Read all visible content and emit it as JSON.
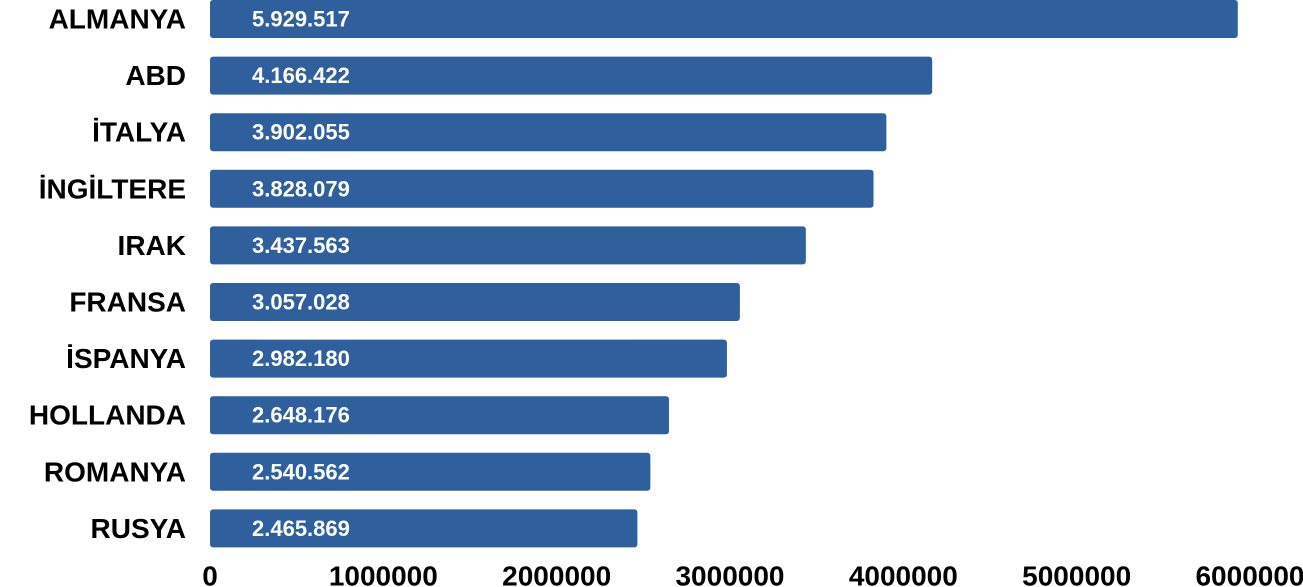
{
  "chart_data": {
    "type": "bar",
    "orientation": "horizontal",
    "categories": [
      "ALMANYA",
      "ABD",
      "İTALYA",
      "İNGİLTERE",
      "IRAK",
      "FRANSA",
      "İSPANYA",
      "HOLLANDA",
      "ROMANYA",
      "RUSYA"
    ],
    "values": [
      5929517,
      4166422,
      3902055,
      3828079,
      3437563,
      3057028,
      2982180,
      2648176,
      2540562,
      2465869
    ],
    "value_labels": [
      "5.929.517",
      "4.166.422",
      "3.902.055",
      "3.828.079",
      "3.437.563",
      "3.057.028",
      "2.982.180",
      "2.648.176",
      "2.540.562",
      "2.465.869"
    ],
    "xticks": [
      "0",
      "1000000",
      "2000000",
      "3000000",
      "4000000",
      "5000000",
      "6000000"
    ],
    "xlim": [
      0,
      6000000
    ],
    "grid": false,
    "legend": false,
    "bar_color": "#2f5f9c"
  }
}
